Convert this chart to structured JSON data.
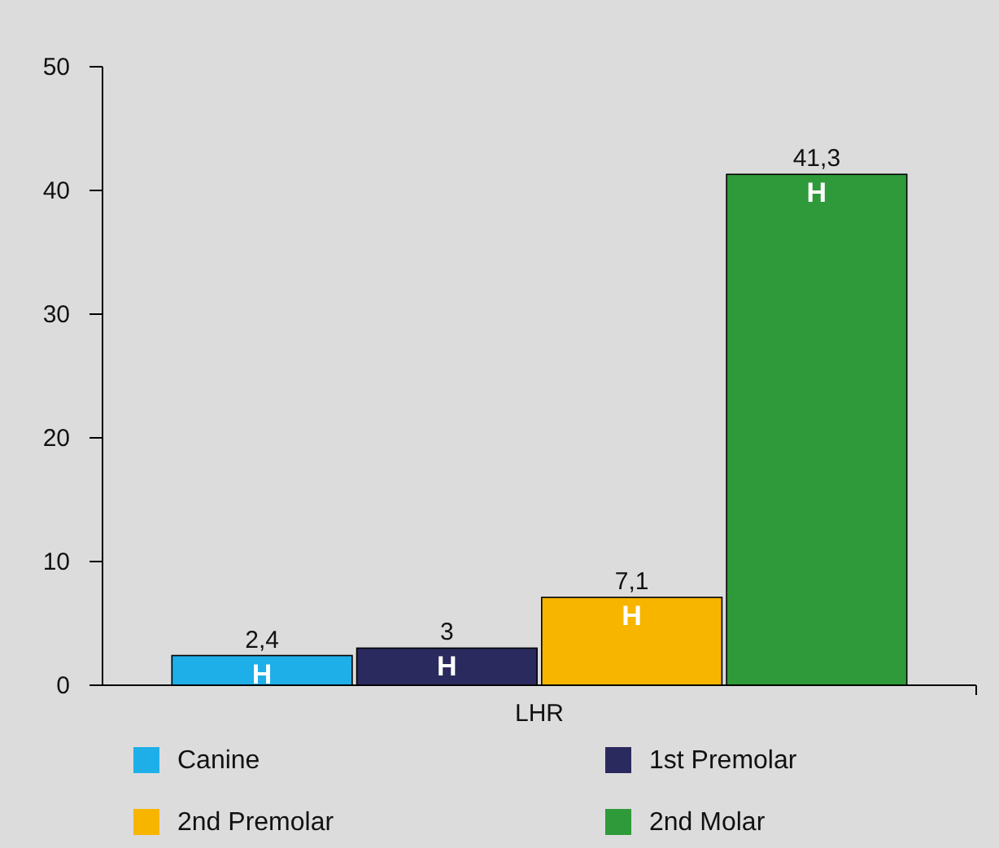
{
  "chart_data": {
    "type": "bar",
    "categories": [
      "LHR"
    ],
    "series": [
      {
        "name": "Canine",
        "color": "#1eaee8",
        "values": [
          2.4
        ],
        "value_labels": [
          "2,4"
        ]
      },
      {
        "name": "1st Premolar",
        "color": "#2b2a5e",
        "values": [
          3
        ],
        "value_labels": [
          "3"
        ]
      },
      {
        "name": "2nd Premolar",
        "color": "#f7b500",
        "values": [
          7.1
        ],
        "value_labels": [
          "7,1"
        ]
      },
      {
        "name": "2nd Molar",
        "color": "#2e9a3a",
        "values": [
          41.3
        ],
        "value_labels": [
          "41,3"
        ]
      }
    ],
    "annotations": [
      "H",
      "H",
      "H",
      "H"
    ],
    "ylim": [
      0,
      50
    ],
    "yticks": [
      0,
      10,
      20,
      30,
      40,
      50
    ],
    "grid": false,
    "legend": "bottom"
  }
}
